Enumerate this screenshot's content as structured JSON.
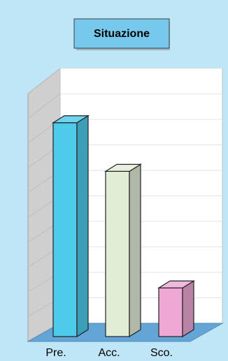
{
  "chart_data": {
    "type": "bar",
    "title": "Situazione",
    "categories": [
      "Pre.",
      "Acc.",
      "Sco."
    ],
    "values": [
      88,
      68,
      20
    ],
    "ylim": [
      0,
      100
    ],
    "grid": true,
    "legend": "none",
    "colors": [
      "#4ecbea",
      "#e2edd6",
      "#eda8d4"
    ]
  },
  "colors": {
    "background": "#bfe6f7",
    "title_box": "#77c8ed",
    "floor": "#62a5d6",
    "left_wall": "#cfcfcf",
    "back_wall": "#ffffff",
    "grid": "#e3e3e3"
  }
}
